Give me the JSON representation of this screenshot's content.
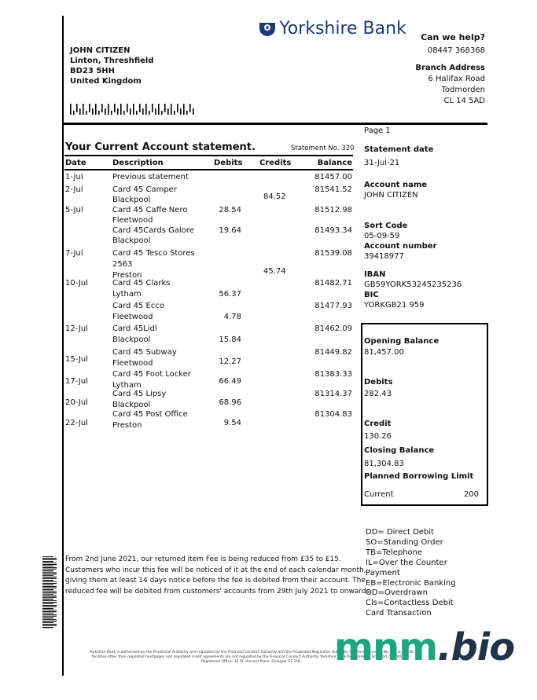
{
  "bank": {
    "name": "Yorkshire Bank",
    "logo_icon": "yorkshire-bank-rose-shield-icon",
    "brand_color": "#1a3a7a"
  },
  "customer": {
    "name": "JOHN CITIZEN",
    "address_lines": [
      "Linton, Threshfield",
      "BD23 5HH",
      "United Kingdom"
    ]
  },
  "help": {
    "title": "Can we help?",
    "phone": "08447 368368",
    "branch_title": "Branch Address",
    "branch_lines": [
      "6 Halifax Road",
      "Todmorden",
      "CL 14 5AD"
    ]
  },
  "statement": {
    "title": "Your Current Account statement.",
    "number": "Statement No. 320",
    "headers": {
      "date": "Date",
      "description": "Description",
      "debits": "Debits",
      "credits": "Credits",
      "balance": "Balance"
    },
    "rows": [
      {
        "date": "1-Jul",
        "description": [
          "Previous statement"
        ],
        "debit": "",
        "credit": "",
        "balance": "81457.00"
      },
      {
        "date": "2-Jul",
        "description": [
          "Card 45 Camper",
          "Blackpool"
        ],
        "debit": "",
        "credit": "84.52",
        "balance": "81541.52"
      },
      {
        "date": "5-Jul",
        "description": [
          "Card 45 Caffe Nero",
          "Fleetwood"
        ],
        "debit": "28.54",
        "credit": "",
        "balance": "81512.98"
      },
      {
        "date": "",
        "description": [
          "Card 45Cards Galore",
          "Blackpool"
        ],
        "debit": "19.64",
        "credit": "",
        "balance": "81493.34"
      },
      {
        "date": "7-Jul",
        "description": [
          "Card 45 Tesco Stores",
          "2563",
          "Preston"
        ],
        "debit": "",
        "credit": "45.74",
        "balance": "81539.08"
      },
      {
        "date": "10-Jul",
        "description": [
          "Card 45 Clarks",
          "Lytham"
        ],
        "debit": "56.37",
        "credit": "",
        "balance": "81482.71"
      },
      {
        "date": "",
        "description": [
          "Card 45 Ecco",
          "Fleetwood"
        ],
        "debit": "4.78",
        "credit": "",
        "balance": "81477.93"
      },
      {
        "date": "12-Jul",
        "description": [
          "Card 45Lidl",
          "Blackpool"
        ],
        "debit": "15.84",
        "credit": "",
        "balance": "81462.09"
      },
      {
        "date": "15-Jul",
        "description": [
          "Card 45 Subway",
          "Fleetwood"
        ],
        "debit": "12.27",
        "credit": "",
        "balance": "81449.82"
      },
      {
        "date": "17-Jul",
        "description": [
          "Card 45 Foot Locker",
          "Lytham"
        ],
        "debit": "66.49",
        "credit": "",
        "balance": "81383.33"
      },
      {
        "date": "20-Jul",
        "description": [
          "Card 45 Lipsy",
          "Blackpool"
        ],
        "debit": "68.96",
        "credit": "",
        "balance": "81314.37"
      },
      {
        "date": "22-Jul",
        "description": [
          "Card 45 Post Office",
          "Preston"
        ],
        "debit": "9.54",
        "credit": "",
        "balance": "81304.83"
      }
    ]
  },
  "side": {
    "page": "Page 1",
    "statement_date_label": "Statement date",
    "statement_date": "31-Jul-21",
    "account_name_label": "Account name",
    "account_name": "JOHN CITIZEN",
    "sort_code_label": "Sort Code",
    "sort_code": "05-09-59",
    "account_number_label": "Account number",
    "account_number": "39418977",
    "iban_label": "IBAN",
    "iban": "GB59YORK53245235236",
    "bic_label": "BIC",
    "bic": "YORKGB21 959"
  },
  "summary": {
    "opening_label": "Opening Balance",
    "opening": "81,457.00",
    "debits_label": "Debits",
    "debits": "282.43",
    "credit_label": "Credit",
    "credit": "130.26",
    "closing_label": "Closing Balance",
    "closing": "81,304.83",
    "limit_label": "Planned Borrowing Limit",
    "limit_current_label": "Current",
    "limit_current": "200"
  },
  "notice": {
    "lines": [
      "From 2nd June 2021, our returned item Fee is being reduced from £35 to £15.",
      "Customers who incur this fee will be noticed of it at the end of each calendar month,",
      "giving them at least 14 days notice before the fee is debited from their account. The",
      "reduced fee will be debited from customers' accounts from 29th July 2021 to onwards."
    ]
  },
  "legend": {
    "lines": [
      "DD= Direct Debit",
      "SO=Standing Order",
      "TB=Telephone",
      "IL=Over the Counter",
      "Payment",
      "EB=Electronic Banking",
      "OD=Overdrawn",
      "Cls=Contactless Debit",
      "Card Transaction"
    ]
  },
  "footer": {
    "lines": [
      "Yorkshire Bank is authorised by the Prudential Authority and regulated by the Financial Conduct Authority and the Prudential Regulation Authority (Financial Services No. 1873). Credit",
      "facilities other than regulated mortgages and regulated credit agreements are not regulated by the Financial Conduct Authority. Yorkshire Bank Registered in Scotland (SC 001111).",
      "Registered Office; 30 St. Vincent Place, Glasgow G1 2HL."
    ]
  },
  "watermark": {
    "part1": "mnm",
    "part2": ".bio",
    "color1": "#19a87e",
    "color2": "#1f3448"
  }
}
